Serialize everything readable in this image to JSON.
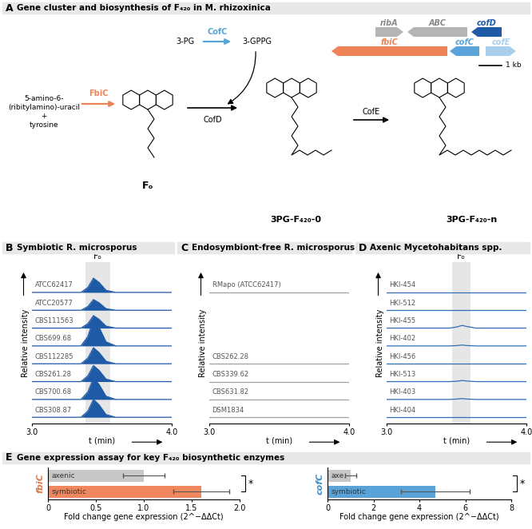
{
  "panel_a": {
    "letter": "A",
    "title": "Gene cluster and biosynthesis of F₄₂₀ in M. rhizoxinica",
    "genes": [
      {
        "name": "ribA",
        "color": "#b5b5b5"
      },
      {
        "name": "ABC",
        "color": "#b5b5b5"
      },
      {
        "name": "cofD",
        "color": "#1f5aa6"
      },
      {
        "name": "fbiC",
        "color": "#ee8357"
      },
      {
        "name": "cofC",
        "color": "#5aa3d8"
      },
      {
        "name": "cofE",
        "color": "#a8d0ec"
      }
    ],
    "scale_bar": "1 kb",
    "compounds": {
      "substrates": "5-amino-6-\n(ribitylamino)-uracil\n+\ntyrosine",
      "precursor": "3-PG",
      "activated": "3-GPPG",
      "fo": "Fₒ",
      "intermediate": "3PG-F₄₂₀-0",
      "product": "3PG-F₄₂₀-n"
    },
    "enzymes": [
      {
        "name": "CofC",
        "color": "#5aa3d8"
      },
      {
        "name": "FbiC",
        "color": "#ee8357"
      },
      {
        "name": "CofD",
        "color": "#000000"
      },
      {
        "name": "CofE",
        "color": "#000000"
      }
    ]
  },
  "panel_e": {
    "letter": "E",
    "title": "Gene expression assay for key F₄₂₀ biosynthetic enzymes"
  },
  "chart_data": [
    {
      "type": "area",
      "letter": "B",
      "title": "Symbiotic R. microsporus",
      "color": "#1f5aa6",
      "x": [
        3.0,
        3.35,
        3.4,
        3.44,
        3.48,
        3.53,
        3.6,
        4.0
      ],
      "series": [
        {
          "name": "ATCC62417",
          "values": [
            0,
            0,
            0.28,
            0.8,
            0.56,
            0.12,
            0,
            0
          ]
        },
        {
          "name": "ATCC20577",
          "values": [
            0,
            0,
            0.21,
            0.6,
            0.42,
            0.09,
            0,
            0
          ]
        },
        {
          "name": "CBS111563",
          "values": [
            0,
            0,
            0.25,
            0.7,
            0.49,
            0.11,
            0,
            0
          ]
        },
        {
          "name": "CBS699.68",
          "values": [
            0,
            0,
            0.53,
            1.5,
            1.05,
            0.23,
            0,
            0
          ]
        },
        {
          "name": "CBS112285",
          "values": [
            0,
            0,
            0.32,
            0.9,
            0.63,
            0.14,
            0,
            0
          ]
        },
        {
          "name": "CBS261.28",
          "values": [
            0,
            0,
            0.32,
            0.9,
            0.63,
            0.14,
            0,
            0
          ]
        },
        {
          "name": "CBS700.68",
          "values": [
            0,
            0,
            0.42,
            1.2,
            0.84,
            0.18,
            0,
            0
          ]
        },
        {
          "name": "CBS308.87",
          "values": [
            0,
            0,
            0.35,
            1.0,
            0.7,
            0.15,
            0,
            0
          ]
        }
      ],
      "xlim": [
        3.0,
        4.0
      ],
      "xticks": [
        3.0,
        4.0
      ],
      "xlabel": "t (min)",
      "ylabel": "Relative intensity",
      "tick_labels": "x",
      "peak_label": "Fₒ",
      "band": [
        3.38,
        3.56
      ]
    },
    {
      "type": "line",
      "letter": "C",
      "title": "Endosymbiont-free R. microsporus",
      "color": "#a0a0a0",
      "x": [
        3.0,
        4.0
      ],
      "series": [
        {
          "name": "RMapo (ATCC62417)",
          "values": [
            0,
            0
          ]
        },
        {
          "name": "CBS262.28",
          "values": [
            0,
            0
          ]
        },
        {
          "name": "CBS339.62",
          "values": [
            0,
            0
          ]
        },
        {
          "name": "CBS631.82",
          "values": [
            0,
            0
          ]
        },
        {
          "name": "DSM1834",
          "values": [
            0,
            0
          ]
        }
      ],
      "xlim": [
        3.0,
        4.0
      ],
      "xticks": [
        3.0,
        4.0
      ],
      "xlabel": "t (min)",
      "ylabel": "Relative intensity",
      "tick_labels": "x"
    },
    {
      "type": "line",
      "letter": "D",
      "title": "Axenic Mycetohabitans spp.",
      "color": "#2f6db5",
      "x": [
        3.0,
        3.45,
        3.5,
        3.54,
        3.58,
        3.64,
        4.0
      ],
      "series": [
        {
          "name": "HKI-454",
          "values": [
            0,
            0,
            0,
            0,
            0,
            0,
            0
          ]
        },
        {
          "name": "HKI-512",
          "values": [
            0,
            0,
            0,
            0,
            0,
            0,
            0
          ]
        },
        {
          "name": "HKI-455",
          "values": [
            0,
            0,
            0.06,
            0.15,
            0.08,
            0,
            0
          ]
        },
        {
          "name": "HKI-402",
          "values": [
            0,
            0,
            0.02,
            0.05,
            0.02,
            0,
            0
          ]
        },
        {
          "name": "HKI-456",
          "values": [
            0,
            0,
            0,
            0,
            0,
            0,
            0
          ]
        },
        {
          "name": "HKI-513",
          "values": [
            0,
            0,
            0.02,
            0.06,
            0.03,
            0,
            0
          ]
        },
        {
          "name": "HKI-403",
          "values": [
            0,
            0,
            0.02,
            0.05,
            0.02,
            0,
            0
          ]
        },
        {
          "name": "HKI-404",
          "values": [
            0,
            0,
            0,
            0,
            0,
            0,
            0
          ]
        }
      ],
      "xlim": [
        3.0,
        4.0
      ],
      "xticks": [
        3.0,
        4.0
      ],
      "xlabel": "t (min)",
      "ylabel": "Relative intensity",
      "tick_labels": "x",
      "peak_label": "Fₒ",
      "band": [
        3.47,
        3.6
      ]
    },
    {
      "type": "bar",
      "orientation": "horizontal",
      "categories": [
        "axenic",
        "symbiotic"
      ],
      "values": [
        1.0,
        1.6
      ],
      "errors": [
        0.22,
        0.29
      ],
      "colors": [
        "#c8c8c8",
        "#f0875e"
      ],
      "xlim": [
        0,
        2.0
      ],
      "xticks": [
        0,
        0.5,
        1.0,
        1.5,
        2.0
      ],
      "xlabel": "Fold change gene expression (2^−ΔΔCt)",
      "ylabel": "fbiC",
      "ylabel_color": "#e0784a",
      "significance": "*",
      "tick_labels": "x"
    },
    {
      "type": "bar",
      "orientation": "horizontal",
      "categories": [
        "axe.",
        "symbiotic"
      ],
      "values": [
        1.0,
        4.7
      ],
      "errors": [
        0.25,
        1.5
      ],
      "colors": [
        "#c8c8c8",
        "#5aa3d8"
      ],
      "xlim": [
        0,
        8
      ],
      "xticks": [
        0,
        2,
        4,
        6,
        8
      ],
      "xlabel": "Fold change gene expression (2^−ΔΔCt)",
      "ylabel": "cofC",
      "ylabel_color": "#3f8fcb",
      "significance": "*",
      "tick_labels": "x"
    }
  ]
}
